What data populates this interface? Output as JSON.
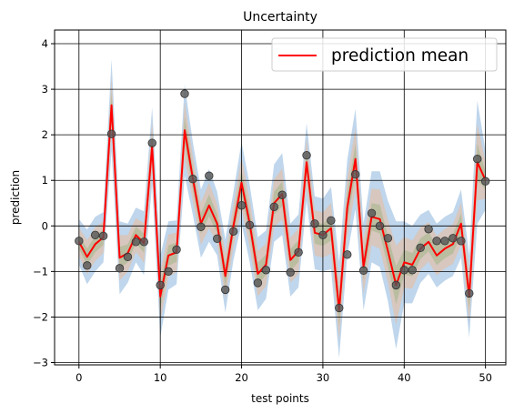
{
  "chart_data": {
    "type": "line",
    "title": "Uncertainty",
    "xlabel": "test points",
    "ylabel": "prediction",
    "xlim": [
      -3,
      52.5
    ],
    "ylim": [
      -3.05,
      4.3
    ],
    "xticks": [
      0,
      10,
      20,
      30,
      40,
      50
    ],
    "yticks": [
      -3,
      -2,
      -1,
      0,
      1,
      2,
      3,
      4
    ],
    "grid": true,
    "legend": {
      "position": "top-right",
      "entries": [
        "prediction mean"
      ]
    },
    "colors": {
      "mean_line": "#ff0000",
      "points": "#555555",
      "band_outer": "#aac8e6",
      "band_middle": "#e8bca0",
      "band_inner": "#aab890",
      "grid": "#000000"
    },
    "x": [
      0,
      1,
      2,
      3,
      4,
      5,
      6,
      7,
      8,
      9,
      10,
      11,
      12,
      13,
      14,
      15,
      16,
      17,
      18,
      19,
      20,
      21,
      22,
      23,
      24,
      25,
      26,
      27,
      28,
      29,
      30,
      31,
      32,
      33,
      34,
      35,
      36,
      37,
      38,
      39,
      40,
      41,
      42,
      43,
      44,
      45,
      46,
      47,
      48,
      49,
      50
    ],
    "series": [
      {
        "name": "prediction mean",
        "values": [
          -0.35,
          -0.68,
          -0.4,
          -0.25,
          2.65,
          -0.7,
          -0.6,
          -0.2,
          -0.38,
          1.75,
          -1.55,
          -0.65,
          -0.58,
          2.1,
          1.05,
          0.05,
          0.45,
          0.05,
          -1.1,
          0.0,
          0.95,
          0.05,
          -1.05,
          -0.85,
          0.5,
          0.7,
          -0.75,
          -0.55,
          1.4,
          -0.15,
          -0.2,
          -0.05,
          -1.85,
          0.4,
          1.47,
          -0.9,
          0.2,
          0.15,
          -0.55,
          -1.3,
          -0.8,
          -0.85,
          -0.5,
          -0.35,
          -0.65,
          -0.5,
          -0.4,
          0.05,
          -1.55,
          1.4,
          1.0
        ]
      },
      {
        "name": "observations",
        "values": [
          -0.33,
          -0.87,
          -0.2,
          -0.22,
          2.02,
          -0.93,
          -0.68,
          -0.35,
          -0.35,
          1.82,
          -1.3,
          -1.0,
          -0.52,
          2.9,
          1.03,
          -0.02,
          1.1,
          -0.28,
          -1.4,
          -0.12,
          0.45,
          0.02,
          -1.25,
          -0.97,
          0.42,
          0.68,
          -1.02,
          -0.58,
          1.55,
          0.05,
          -0.2,
          0.12,
          -1.8,
          -0.63,
          1.13,
          -0.98,
          0.28,
          0.0,
          -0.27,
          -1.3,
          -0.97,
          -0.97,
          -0.48,
          -0.07,
          -0.33,
          -0.33,
          -0.27,
          -0.33,
          -1.48,
          1.47,
          0.98
        ]
      }
    ],
    "uncertainty_sigma": [
      0.5,
      0.6,
      0.6,
      0.55,
      1.0,
      0.8,
      0.65,
      0.6,
      0.7,
      0.85,
      0.9,
      0.75,
      0.7,
      1.0,
      0.8,
      0.75,
      0.8,
      0.7,
      0.8,
      0.75,
      0.9,
      0.85,
      0.8,
      0.75,
      0.85,
      0.9,
      0.8,
      0.8,
      0.85,
      0.8,
      0.8,
      0.9,
      1.05,
      1.05,
      1.1,
      0.95,
      1.0,
      1.05,
      1.1,
      1.4,
      0.9,
      0.85,
      0.75,
      0.7,
      0.7,
      0.7,
      0.7,
      0.75,
      0.9,
      1.35,
      0.65
    ]
  }
}
